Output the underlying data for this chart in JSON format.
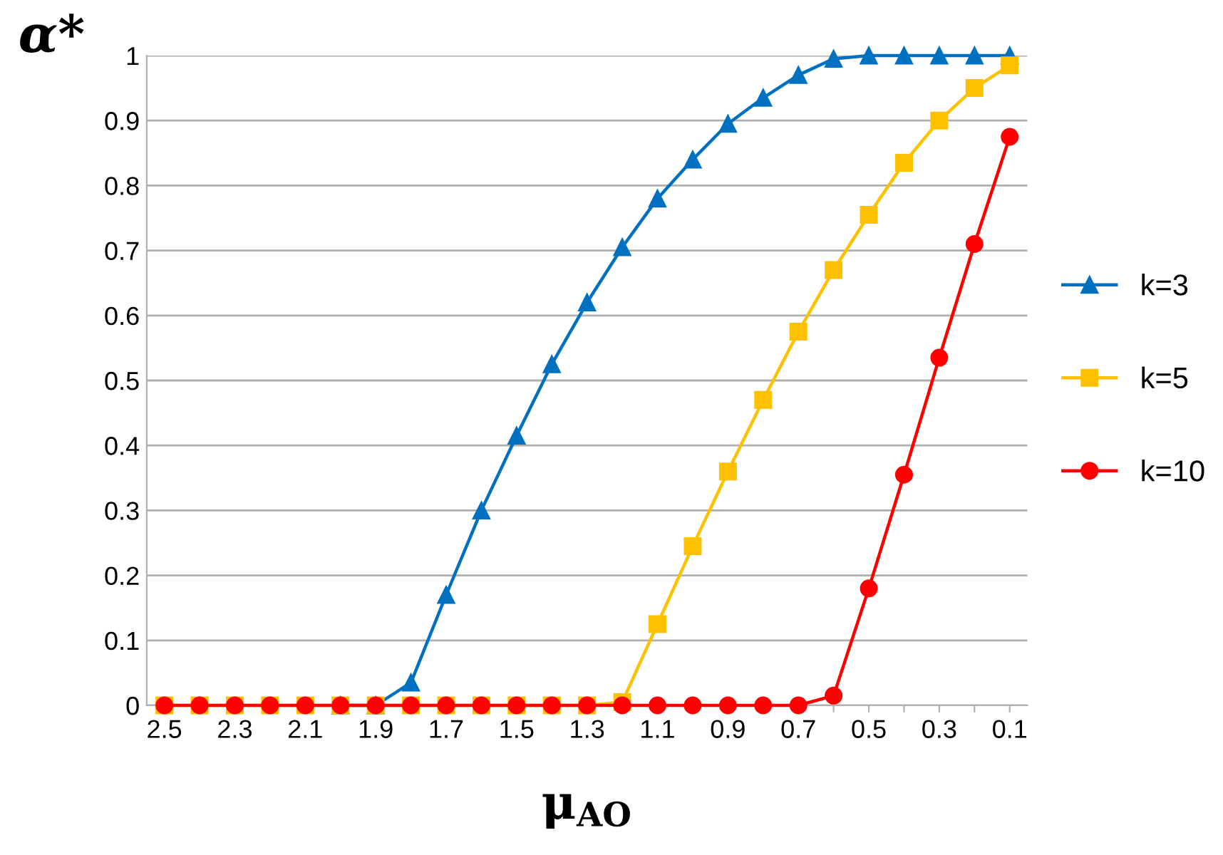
{
  "chart_data": {
    "type": "line",
    "xlabel": "μ$_{AO}$",
    "ylabel": "α*",
    "categories": [
      "2.5",
      null,
      "2.3",
      null,
      "2.1",
      null,
      "1.9",
      null,
      "1.7",
      null,
      "1.5",
      null,
      "1.3",
      null,
      "1.1",
      null,
      "0.9",
      null,
      "0.7",
      null,
      "0.5",
      null,
      "0.3",
      null,
      "0.1"
    ],
    "series": [
      {
        "name": "k=3",
        "color": "#0070c0",
        "marker": "triangle",
        "values": [
          null,
          null,
          null,
          null,
          null,
          0,
          0,
          0.035,
          0.17,
          0.3,
          0.415,
          0.525,
          0.62,
          0.705,
          0.78,
          0.84,
          0.895,
          0.935,
          0.97,
          0.995,
          1,
          1,
          1,
          1,
          1
        ]
      },
      {
        "name": "k=5",
        "color": "#ffc000",
        "marker": "square",
        "values": [
          0,
          0,
          0,
          0,
          0,
          0,
          0,
          0,
          0,
          0,
          0,
          0,
          0,
          0.005,
          0.125,
          0.245,
          0.36,
          0.47,
          0.575,
          0.67,
          0.755,
          0.835,
          0.9,
          0.95,
          0.985
        ]
      },
      {
        "name": "k=10",
        "color": "#ff0000",
        "marker": "circle",
        "values": [
          0,
          0,
          0,
          0,
          0,
          0,
          0,
          0,
          0,
          0,
          0,
          0,
          0,
          0,
          0,
          0,
          0,
          0,
          0,
          0.015,
          0.18,
          0.355,
          0.535,
          0.71,
          0.875
        ]
      }
    ],
    "ylim": [
      0,
      1
    ],
    "yticks": [
      0,
      0.1,
      0.2,
      0.3,
      0.4,
      0.5,
      0.6,
      0.7,
      0.8,
      0.9,
      1
    ],
    "grid": "y",
    "legend": "right",
    "line_style": "solid"
  }
}
